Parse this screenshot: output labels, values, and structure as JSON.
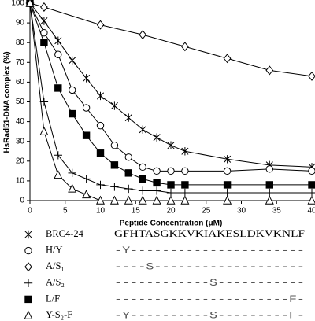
{
  "chart_data": {
    "type": "line",
    "xlabel": "Peptide Concentration (μM)",
    "ylabel": "HsRad51-DNA complex (%)",
    "x": [
      0,
      2,
      4,
      6,
      8,
      10,
      12,
      14,
      16,
      18,
      20,
      22,
      28,
      34,
      40
    ],
    "xlim": [
      0,
      40
    ],
    "xticks": [
      0,
      5,
      10,
      15,
      20,
      25,
      30,
      35,
      40
    ],
    "ylim": [
      0,
      100
    ],
    "yticks": [
      0,
      10,
      20,
      30,
      40,
      50,
      60,
      70,
      80,
      90,
      100
    ],
    "grid": false,
    "sequence": "GFHTASGKKVKIAKESLDKVKNLF",
    "series": [
      {
        "name": "BRC4-24",
        "marker": "star",
        "color": "#000000",
        "values": [
          100,
          91,
          81,
          71,
          62,
          53,
          48,
          42,
          36,
          32,
          28,
          25,
          21,
          18,
          17
        ]
      },
      {
        "name": "H/Y",
        "marker": "circle",
        "color": "#000000",
        "alignment": "-Y----------------------",
        "values": [
          100,
          85,
          74,
          56,
          47,
          38,
          28,
          22,
          17,
          15,
          15,
          15,
          15,
          16,
          15
        ]
      },
      {
        "name": "A/S₁",
        "marker": "diamond",
        "color": "#000000",
        "alignment": "----S-------------------",
        "x": [
          0,
          2,
          10,
          16,
          22,
          28,
          34,
          40
        ],
        "values": [
          100,
          98,
          89,
          84,
          78,
          72,
          66,
          63
        ]
      },
      {
        "name": "A/S₂",
        "marker": "plus",
        "color": "#000000",
        "alignment": "------------S-----------",
        "values": [
          100,
          50,
          23,
          14,
          11,
          8,
          7,
          6,
          5,
          5,
          4,
          4,
          4,
          4,
          4
        ]
      },
      {
        "name": "L/F",
        "marker": "square",
        "color": "#000000",
        "alignment": "----------------------F-",
        "values": [
          100,
          80,
          57,
          44,
          33,
          24,
          18,
          14,
          11,
          9,
          8,
          8,
          8,
          8,
          8
        ]
      },
      {
        "name": "Y-S₂-F",
        "marker": "triangle",
        "color": "#000000",
        "alignment": "-Y----------S---------F-",
        "values": [
          100,
          35,
          13,
          6,
          3,
          0,
          0,
          0,
          0,
          0,
          0,
          0,
          0,
          0,
          0
        ]
      }
    ]
  }
}
